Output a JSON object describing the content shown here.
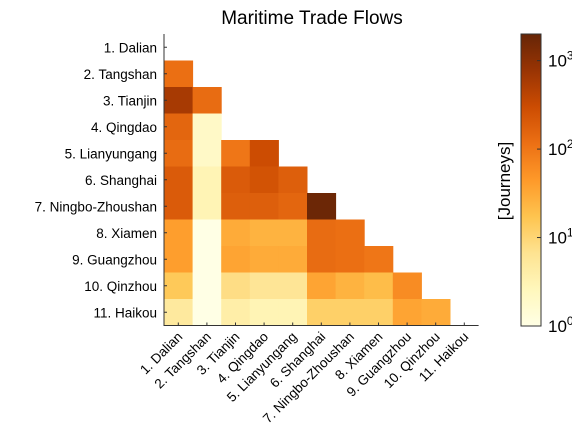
{
  "chart_data": {
    "type": "heatmap",
    "title": "Maritime Trade Flows",
    "xlabel": "",
    "ylabel": "",
    "colorbar_label": "[Journeys]",
    "colorbar_scale": "log",
    "colorbar_range": [
      1,
      2000
    ],
    "colorbar_ticks": [
      1,
      10,
      100,
      1000
    ],
    "colorbar_tick_labels": [
      {
        "base": "10",
        "exp": "0"
      },
      {
        "base": "10",
        "exp": "1"
      },
      {
        "base": "10",
        "exp": "2"
      },
      {
        "base": "10",
        "exp": "3"
      }
    ],
    "colormap": [
      "#ffffe5",
      "#fff7bc",
      "#fee391",
      "#fec44f",
      "#fe9929",
      "#ec7014",
      "#cc4c02",
      "#993404",
      "#662506"
    ],
    "rows": [
      "1. Dalian",
      "2. Tangshan",
      "3. Tianjin",
      "4. Qingdao",
      "5. Lianyungang",
      "6. Shanghai",
      "7. Ningbo-Zhoushan",
      "8. Xiamen",
      "9. Guangzhou",
      "10. Qinzhou",
      "11. Haikou"
    ],
    "columns": [
      "1. Dalian",
      "2. Tangshan",
      "3. Tianjin",
      "4. Qingdao",
      "5. Lianyungang",
      "6. Shanghai",
      "7. Ningbo-Zhoushan",
      "8. Xiamen",
      "9. Guangzhou",
      "10. Qinzhou",
      "11. Haikou"
    ],
    "values": [
      [
        null,
        null,
        null,
        null,
        null,
        null,
        null,
        null,
        null,
        null,
        null
      ],
      [
        120,
        null,
        null,
        null,
        null,
        null,
        null,
        null,
        null,
        null,
        null
      ],
      [
        600,
        130,
        null,
        null,
        null,
        null,
        null,
        null,
        null,
        null,
        null
      ],
      [
        150,
        2,
        null,
        null,
        null,
        null,
        null,
        null,
        null,
        null,
        null
      ],
      [
        130,
        2,
        100,
        300,
        null,
        null,
        null,
        null,
        null,
        null,
        null
      ],
      [
        200,
        3,
        200,
        250,
        180,
        null,
        null,
        null,
        null,
        null,
        null
      ],
      [
        200,
        3,
        180,
        180,
        150,
        1800,
        null,
        null,
        null,
        null,
        null
      ],
      [
        40,
        1,
        30,
        25,
        25,
        130,
        120,
        null,
        null,
        null,
        null
      ],
      [
        40,
        1,
        35,
        30,
        30,
        130,
        120,
        100,
        null,
        null,
        null
      ],
      [
        15,
        1,
        8,
        6,
        6,
        35,
        25,
        20,
        60,
        null,
        null
      ],
      [
        5,
        1,
        4,
        3,
        3,
        12,
        12,
        12,
        35,
        30,
        null
      ]
    ]
  }
}
